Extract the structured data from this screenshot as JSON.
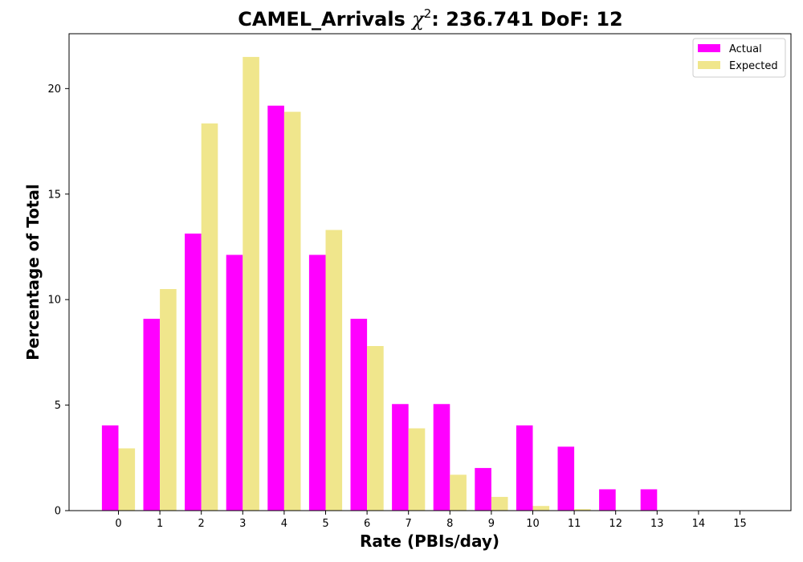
{
  "chart_data": {
    "type": "bar",
    "title_main": "CAMEL_Arrivals ",
    "title_chi": "χ",
    "title_sup": "2",
    "title_rest": ": 236.741 DoF: 12",
    "xlabel": "Rate (PBIs/day)",
    "ylabel": "Percentage of Total",
    "categories": [
      "0",
      "1",
      "2",
      "3",
      "4",
      "5",
      "6",
      "7",
      "8",
      "9",
      "10",
      "11",
      "12",
      "13",
      "14",
      "15"
    ],
    "series": [
      {
        "name": "Actual",
        "color": "#ff00ff",
        "values": [
          4.04,
          9.09,
          13.13,
          12.12,
          19.19,
          12.12,
          9.09,
          5.05,
          5.05,
          2.02,
          4.04,
          3.03,
          1.01,
          1.01,
          0,
          0
        ]
      },
      {
        "name": "Expected",
        "color": "#f0e68c",
        "values": [
          2.95,
          10.5,
          18.35,
          21.5,
          18.9,
          13.3,
          7.8,
          3.9,
          1.7,
          0.65,
          0.22,
          0.07,
          0.02,
          0.005,
          0,
          0
        ]
      }
    ],
    "ylim": [
      0,
      22.6
    ],
    "yticks": [
      0,
      5,
      10,
      15,
      20
    ],
    "legend_position": "top-right",
    "grid": false
  }
}
